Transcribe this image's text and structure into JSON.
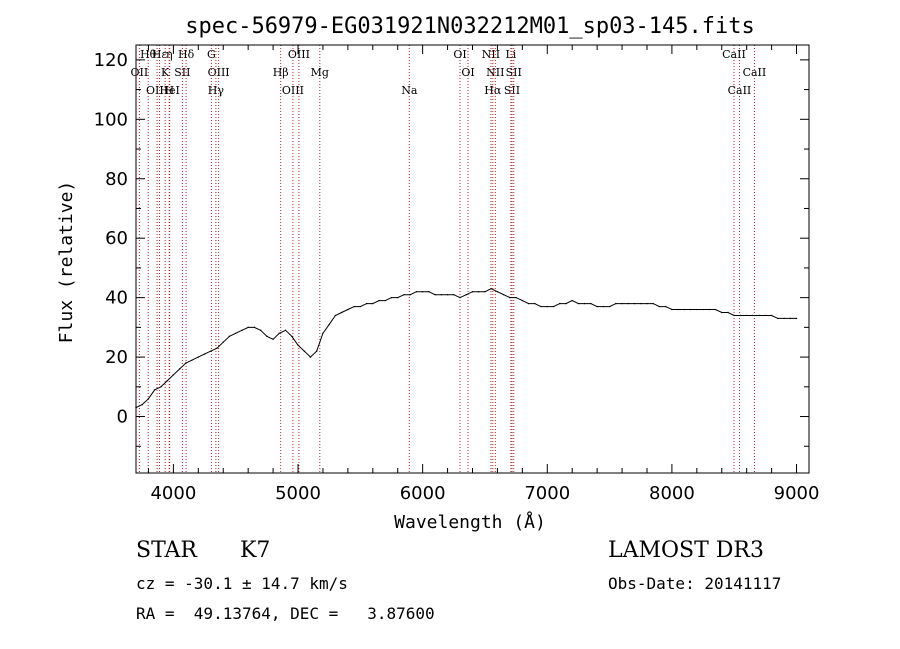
{
  "chart_data": {
    "type": "line",
    "title": "spec-56979-EG031921N032212M01_sp03-145.fits",
    "xlabel": "Wavelength (Å)",
    "ylabel": "Flux (relative)",
    "xlim": [
      3700,
      9100
    ],
    "ylim": [
      -19,
      125
    ],
    "xticks": [
      4000,
      5000,
      6000,
      7000,
      8000,
      9000
    ],
    "yticks": [
      0,
      20,
      40,
      60,
      80,
      100,
      120
    ],
    "series": [
      {
        "name": "flux",
        "x": [
          3700,
          3750,
          3800,
          3850,
          3900,
          3950,
          4000,
          4050,
          4100,
          4150,
          4200,
          4250,
          4300,
          4350,
          4400,
          4450,
          4500,
          4550,
          4600,
          4650,
          4700,
          4750,
          4800,
          4850,
          4900,
          4950,
          5000,
          5050,
          5100,
          5150,
          5200,
          5250,
          5300,
          5350,
          5400,
          5450,
          5500,
          5550,
          5600,
          5650,
          5700,
          5750,
          5800,
          5850,
          5900,
          5950,
          6000,
          6050,
          6100,
          6150,
          6200,
          6250,
          6300,
          6350,
          6400,
          6450,
          6500,
          6550,
          6600,
          6650,
          6700,
          6750,
          6800,
          6850,
          6900,
          6950,
          7000,
          7050,
          7100,
          7150,
          7200,
          7250,
          7300,
          7350,
          7400,
          7450,
          7500,
          7550,
          7600,
          7650,
          7700,
          7750,
          7800,
          7850,
          7900,
          7950,
          8000,
          8050,
          8100,
          8150,
          8200,
          8250,
          8300,
          8350,
          8400,
          8450,
          8500,
          8550,
          8600,
          8650,
          8700,
          8750,
          8800,
          8850,
          8900,
          8950,
          9000
        ],
        "values": [
          3,
          4,
          6,
          9,
          10,
          12,
          14,
          16,
          18,
          19,
          20,
          21,
          22,
          23,
          25,
          27,
          28,
          29,
          30,
          30,
          29,
          27,
          26,
          28,
          29,
          27,
          24,
          22,
          20,
          22,
          28,
          31,
          34,
          35,
          36,
          37,
          37,
          38,
          38,
          39,
          39,
          40,
          40,
          41,
          41,
          42,
          42,
          42,
          41,
          41,
          41,
          41,
          40,
          41,
          42,
          42,
          42,
          43,
          42,
          41,
          40,
          40,
          39,
          38,
          38,
          37,
          37,
          37,
          38,
          38,
          39,
          38,
          38,
          38,
          37,
          37,
          37,
          38,
          38,
          38,
          38,
          38,
          38,
          38,
          37,
          37,
          36,
          36,
          36,
          36,
          36,
          36,
          36,
          36,
          35,
          35,
          34,
          34,
          34,
          34,
          34,
          34,
          34,
          33,
          33,
          33,
          33
        ]
      }
    ],
    "line_markers": [
      {
        "label": "Hθ",
        "x": 3798
      },
      {
        "label": "OII",
        "x": 3727
      },
      {
        "label": "OIII",
        "x": 3869
      },
      {
        "label": "Hε",
        "x": 3889
      },
      {
        "label": "K",
        "x": 3934
      },
      {
        "label": "HeI",
        "x": 3970
      },
      {
        "label": "η",
        "x": 3967
      },
      {
        "label": "SII",
        "x": 4072
      },
      {
        "label": "H",
        "x": 3968
      },
      {
        "label": "Hδ",
        "x": 4102
      },
      {
        "label": "OIII",
        "x": 4363
      },
      {
        "label": "Hγ",
        "x": 4341
      },
      {
        "label": "G",
        "x": 4305
      },
      {
        "label": "Hβ",
        "x": 4861
      },
      {
        "label": "OIII",
        "x": 4959
      },
      {
        "label": "OIII",
        "x": 5007
      },
      {
        "label": "Mg",
        "x": 5175
      },
      {
        "label": "Na",
        "x": 5893
      },
      {
        "label": "OI",
        "x": 6300
      },
      {
        "label": "OI",
        "x": 6364
      },
      {
        "label": "Hα",
        "x": 6563
      },
      {
        "label": "NII",
        "x": 6548
      },
      {
        "label": "NII",
        "x": 6583
      },
      {
        "label": "SII",
        "x": 6717
      },
      {
        "label": "Li",
        "x": 6708
      },
      {
        "label": "SII",
        "x": 6731
      },
      {
        "label": "CaII",
        "x": 8542
      },
      {
        "label": "CaII",
        "x": 8498
      },
      {
        "label": "CaII",
        "x": 8662
      }
    ],
    "annotations": {
      "class": "STAR",
      "subclass": "K7",
      "survey": "LAMOST DR3",
      "cz": "cz = -30.1 ± 14.7 km/s",
      "obs_date": "Obs-Date: 20141117",
      "coords": "RA =  49.13764, DEC =   3.87600"
    }
  }
}
